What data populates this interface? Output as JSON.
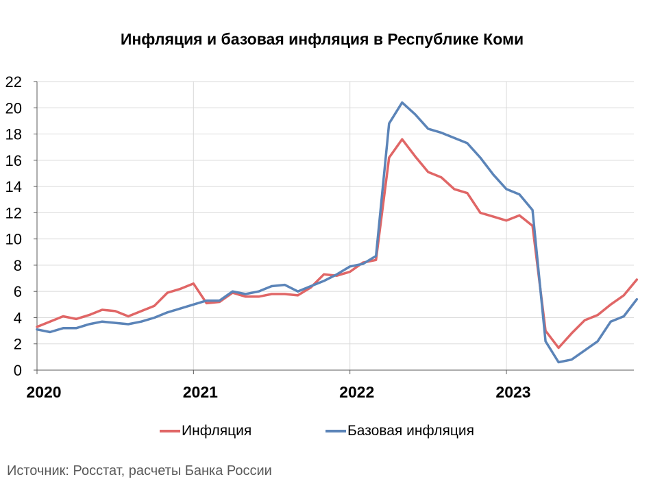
{
  "title": "Инфляция и базовая инфляция в Республике Коми",
  "source": "Источник: Росстат, расчеты Банка России",
  "colors": {
    "inflation": "#e06666",
    "core": "#5b84b8",
    "grid": "#d9d9d9",
    "axis": "#595959"
  },
  "chart_data": {
    "type": "line",
    "title": "Инфляция и базовая инфляция в Республике Коми",
    "xlabel": "",
    "ylabel": "",
    "ylim": [
      0,
      22
    ],
    "yticks": [
      "0",
      "2",
      "4",
      "6",
      "8",
      "10",
      "12",
      "14",
      "16",
      "18",
      "20",
      "22"
    ],
    "xticks": [
      {
        "label": "2020",
        "month": 0
      },
      {
        "label": "2021",
        "month": 12
      },
      {
        "label": "2022",
        "month": 24
      },
      {
        "label": "2023",
        "month": 36
      }
    ],
    "x": [
      "2020-01",
      "2020-02",
      "2020-03",
      "2020-04",
      "2020-05",
      "2020-06",
      "2020-07",
      "2020-08",
      "2020-09",
      "2020-10",
      "2020-11",
      "2020-12",
      "2021-01",
      "2021-02",
      "2021-03",
      "2021-04",
      "2021-05",
      "2021-06",
      "2021-07",
      "2021-08",
      "2021-09",
      "2021-10",
      "2021-11",
      "2021-12",
      "2022-01",
      "2022-02",
      "2022-03",
      "2022-04",
      "2022-05",
      "2022-06",
      "2022-07",
      "2022-08",
      "2022-09",
      "2022-10",
      "2022-11",
      "2022-12",
      "2023-01",
      "2023-02",
      "2023-03",
      "2023-04",
      "2023-05",
      "2023-06",
      "2023-07",
      "2023-08",
      "2023-09",
      "2023-10",
      "2023-11"
    ],
    "grid": true,
    "legend_position": "bottom",
    "series": [
      {
        "name": "Инфляция",
        "color": "#e06666",
        "values": [
          3.3,
          3.7,
          4.1,
          3.9,
          4.2,
          4.6,
          4.5,
          4.1,
          4.5,
          4.9,
          5.9,
          6.2,
          6.6,
          5.1,
          5.2,
          5.9,
          5.6,
          5.6,
          5.8,
          5.8,
          5.7,
          6.3,
          7.3,
          7.2,
          7.5,
          8.2,
          8.4,
          16.2,
          17.6,
          16.3,
          15.1,
          14.7,
          13.8,
          13.5,
          12.0,
          11.7,
          11.4,
          11.8,
          11.0,
          3.0,
          1.7,
          2.8,
          3.8,
          4.2,
          5.0,
          5.7,
          6.9
        ]
      },
      {
        "name": "Базовая инфляция",
        "color": "#5b84b8",
        "values": [
          3.1,
          2.9,
          3.2,
          3.2,
          3.5,
          3.7,
          3.6,
          3.5,
          3.7,
          4.0,
          4.4,
          4.7,
          5.0,
          5.3,
          5.3,
          6.0,
          5.8,
          6.0,
          6.4,
          6.5,
          6.0,
          6.4,
          6.8,
          7.3,
          7.9,
          8.1,
          8.7,
          18.8,
          20.4,
          19.5,
          18.4,
          18.1,
          17.7,
          17.3,
          16.2,
          14.9,
          13.8,
          13.4,
          12.2,
          2.2,
          0.6,
          0.8,
          1.5,
          2.2,
          3.7,
          4.1,
          5.4
        ]
      }
    ]
  }
}
